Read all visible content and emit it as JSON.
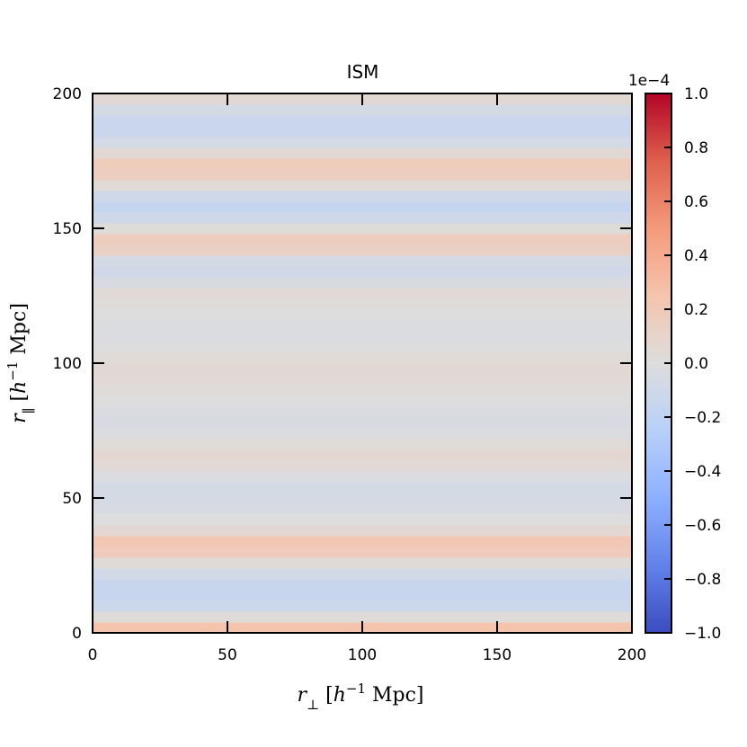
{
  "chart_data": {
    "type": "heatmap",
    "title": "ISM",
    "xlabel": {
      "main": "r",
      "sub": "⊥",
      "unit_open": " [",
      "unit_h": "h",
      "unit_exp": "−1",
      "unit_rest": " Mpc]"
    },
    "ylabel": {
      "main": "r",
      "sub": "∥",
      "unit_open": " [",
      "unit_h": "h",
      "unit_exp": "−1",
      "unit_rest": " Mpc]"
    },
    "xlim": [
      0,
      200
    ],
    "ylim": [
      0,
      200
    ],
    "xticks": [
      0,
      50,
      100,
      150,
      200
    ],
    "yticks": [
      0,
      50,
      100,
      150,
      200
    ],
    "xtick_labels": [
      "0",
      "50",
      "100",
      "150",
      "200"
    ],
    "ytick_labels": [
      "0",
      "50",
      "100",
      "150",
      "200"
    ],
    "colormap": "coolwarm",
    "vmin": -1.0,
    "vmax": 1.0,
    "colorbar_scale_label": "1e−4",
    "colorbar_ticks": [
      1.0,
      0.8,
      0.6,
      0.4,
      0.2,
      0.0,
      -0.2,
      -0.4,
      -0.6,
      -0.8,
      -1.0
    ],
    "colorbar_tick_labels": [
      "1.0",
      "0.8",
      "0.6",
      "0.4",
      "0.2",
      "0.0",
      "−0.2",
      "−0.4",
      "−0.6",
      "−0.8",
      "−1.0"
    ],
    "grid": false,
    "bin_size": 4,
    "row_values": [
      0.25,
      0.02,
      -0.12,
      -0.14,
      -0.14,
      -0.08,
      0.03,
      0.18,
      0.22,
      0.06,
      0.0,
      -0.04,
      -0.06,
      -0.06,
      -0.02,
      0.04,
      0.07,
      0.03,
      -0.02,
      -0.04,
      -0.03,
      0.0,
      0.02,
      0.04,
      0.05,
      0.03,
      0.0,
      -0.02,
      -0.02,
      0.0,
      0.02,
      0.04,
      -0.04,
      -0.09,
      -0.06,
      0.13,
      0.16,
      0.02,
      -0.1,
      -0.16,
      -0.1,
      0.03,
      0.15,
      0.17,
      0.05,
      -0.07,
      -0.13,
      -0.13,
      -0.06,
      0.05
    ]
  }
}
